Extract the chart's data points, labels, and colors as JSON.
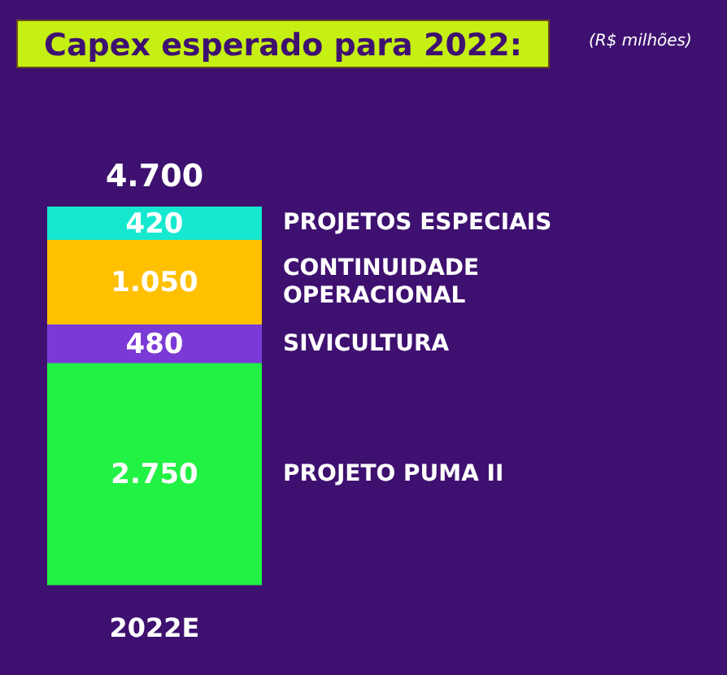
{
  "chart_data": {
    "type": "bar",
    "title": "Capex esperado para 2022:",
    "annotations": [
      "(R$ milhões)"
    ],
    "categories": [
      "2022E"
    ],
    "stacked": true,
    "legend": false,
    "series": [
      {
        "name": "PROJETO PUMA II",
        "color": "#22f244",
        "values": [
          2750
        ],
        "value_labels": [
          "2.750"
        ]
      },
      {
        "name": "SIVICULTURA",
        "color": "#7b3ad6",
        "values": [
          480
        ],
        "value_labels": [
          "480"
        ]
      },
      {
        "name": "CONTINUIDADE OPERACIONAL",
        "color": "#ffc000",
        "values": [
          1050
        ],
        "value_labels": [
          "1.050"
        ]
      },
      {
        "name": "PROJETOS ESPECIAIS",
        "color": "#16e8d0",
        "values": [
          420
        ],
        "value_labels": [
          "420"
        ]
      }
    ],
    "totals": [
      "4.700"
    ]
  }
}
